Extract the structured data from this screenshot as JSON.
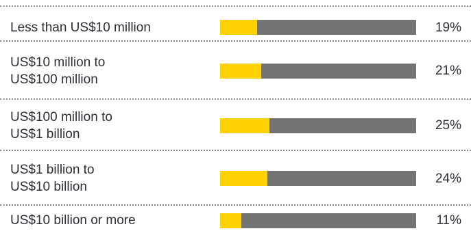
{
  "chart_data": {
    "type": "bar",
    "orientation": "horizontal",
    "categories": [
      "Less than US$10 million",
      "US$10 million to\nUS$100 million",
      "US$100 million to\nUS$1 billion",
      "US$1 billion to\nUS$10 billion",
      "US$10 billion or more"
    ],
    "values": [
      19,
      21,
      25,
      24,
      11
    ],
    "value_labels": [
      "19%",
      "21%",
      "25%",
      "24%",
      "11%"
    ],
    "xlim": [
      0,
      100
    ],
    "colors": {
      "value": "#ffd200",
      "remainder": "#747474"
    }
  }
}
